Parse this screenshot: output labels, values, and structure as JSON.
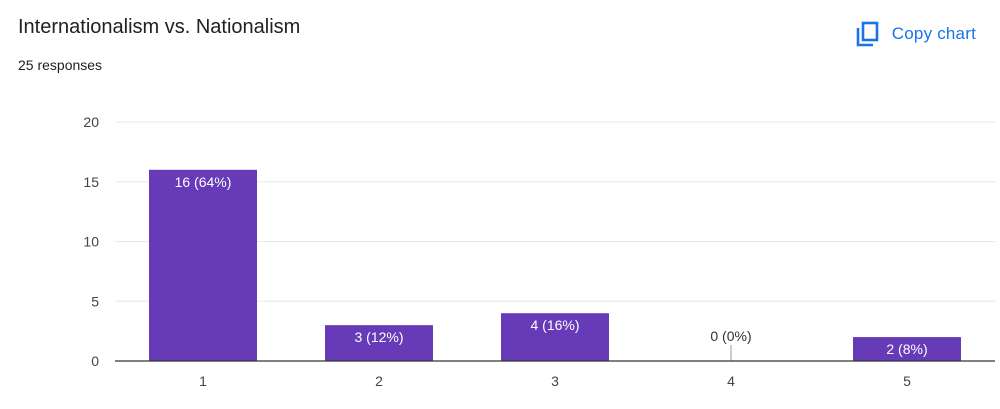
{
  "header": {
    "title": "Internationalism vs. Nationalism",
    "responses": "25 responses",
    "copy_label": "Copy chart",
    "copy_icon": "copy-icon"
  },
  "colors": {
    "bar": "#673ab7",
    "accent": "#1a73e8",
    "grid": "#e8e8e8",
    "axis": "#333333"
  },
  "chart_data": {
    "type": "bar",
    "categories": [
      "1",
      "2",
      "3",
      "4",
      "5"
    ],
    "values": [
      16,
      3,
      4,
      0,
      2
    ],
    "labels": [
      "16 (64%)",
      "3 (12%)",
      "4 (16%)",
      "0 (0%)",
      "2 (8%)"
    ],
    "yticks": [
      0,
      5,
      10,
      15,
      20
    ],
    "ylim": [
      0,
      20
    ],
    "grid": true,
    "legend": "none"
  }
}
